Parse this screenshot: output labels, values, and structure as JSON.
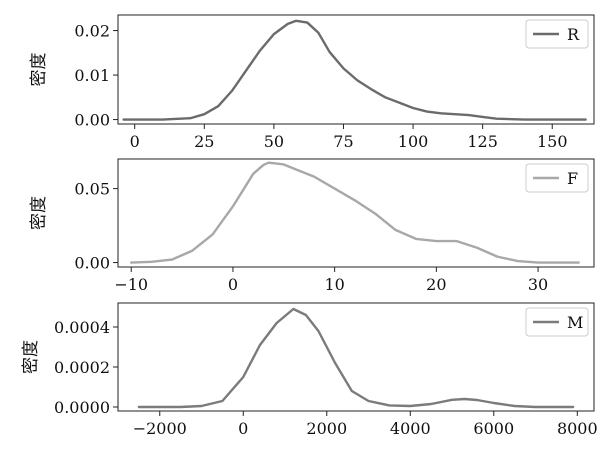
{
  "colors": {
    "R": "#6b6b6b",
    "F": "#a8a8a8",
    "M": "#7b7b7b"
  },
  "chart_data": [
    {
      "type": "line",
      "ylabel": "密度",
      "legend": "top-right",
      "xlim": [
        -6,
        165
      ],
      "ylim": [
        -0.001,
        0.0235
      ],
      "xticks": [
        0,
        25,
        50,
        75,
        100,
        125,
        150
      ],
      "xtick_labels": [
        "0",
        "25",
        "50",
        "75",
        "100",
        "125",
        "150"
      ],
      "yticks": [
        0,
        0.01,
        0.02
      ],
      "ytick_labels": [
        "0.00",
        "0.01",
        "0.02"
      ],
      "series": [
        {
          "name": "R",
          "color": "#6b6b6b",
          "x": [
            -4,
            10,
            20,
            25,
            30,
            35,
            40,
            45,
            50,
            55,
            58,
            62,
            66,
            70,
            75,
            80,
            85,
            90,
            95,
            100,
            105,
            110,
            115,
            120,
            125,
            130,
            140,
            150,
            162
          ],
          "y": [
            0.0,
            0.0,
            0.0003,
            0.0012,
            0.003,
            0.0065,
            0.011,
            0.0155,
            0.0192,
            0.0215,
            0.0222,
            0.0218,
            0.0195,
            0.0152,
            0.0115,
            0.0088,
            0.0068,
            0.005,
            0.0038,
            0.0026,
            0.0018,
            0.0014,
            0.0012,
            0.001,
            0.0006,
            0.0002,
            0.0,
            0.0,
            0.0
          ]
        }
      ]
    },
    {
      "type": "line",
      "ylabel": "密度",
      "legend": "top-right",
      "xlim": [
        -11.3,
        35.5
      ],
      "ylim": [
        -0.003,
        0.07
      ],
      "xticks": [
        -10,
        0,
        10,
        20,
        30
      ],
      "xtick_labels": [
        "−10",
        "0",
        "10",
        "20",
        "30"
      ],
      "yticks": [
        0,
        0.05
      ],
      "ytick_labels": [
        "0.00",
        "0.05"
      ],
      "series": [
        {
          "name": "F",
          "color": "#a8a8a8",
          "x": [
            -10,
            -8,
            -6,
            -4,
            -2,
            0,
            1,
            2,
            3,
            3.5,
            4,
            5,
            6,
            8,
            10,
            12,
            14,
            16,
            18,
            20,
            22,
            24,
            26,
            28,
            30,
            34
          ],
          "y": [
            0.0,
            0.0005,
            0.002,
            0.008,
            0.019,
            0.038,
            0.049,
            0.06,
            0.066,
            0.0675,
            0.0672,
            0.0663,
            0.0635,
            0.058,
            0.05,
            0.042,
            0.033,
            0.022,
            0.016,
            0.0145,
            0.0145,
            0.01,
            0.004,
            0.001,
            0.0,
            0.0
          ]
        }
      ]
    },
    {
      "type": "line",
      "ylabel": "密度",
      "legend": "top-right",
      "xlim": [
        -3000,
        8400
      ],
      "ylim": [
        -2e-05,
        0.00052
      ],
      "xticks": [
        -2000,
        0,
        2000,
        4000,
        6000,
        8000
      ],
      "xtick_labels": [
        "−2000",
        "0",
        "2000",
        "4000",
        "6000",
        "8000"
      ],
      "yticks": [
        0,
        0.0002,
        0.0004
      ],
      "ytick_labels": [
        "0.0000",
        "0.0002",
        "0.0004"
      ],
      "series": [
        {
          "name": "M",
          "color": "#7b7b7b",
          "x": [
            -2500,
            -1500,
            -1000,
            -500,
            0,
            400,
            800,
            1200,
            1500,
            1800,
            2200,
            2600,
            3000,
            3500,
            4000,
            4500,
            5000,
            5300,
            5600,
            6000,
            6500,
            7000,
            7900
          ],
          "y": [
            0.0,
            0.0,
            5e-06,
            3e-05,
            0.00015,
            0.00031,
            0.00042,
            0.00049,
            0.00046,
            0.00038,
            0.00022,
            8e-05,
            3e-05,
            8e-06,
            5e-06,
            1.5e-05,
            3.6e-05,
            4e-05,
            3.5e-05,
            2e-05,
            5e-06,
            0.0,
            0.0
          ]
        }
      ]
    }
  ]
}
